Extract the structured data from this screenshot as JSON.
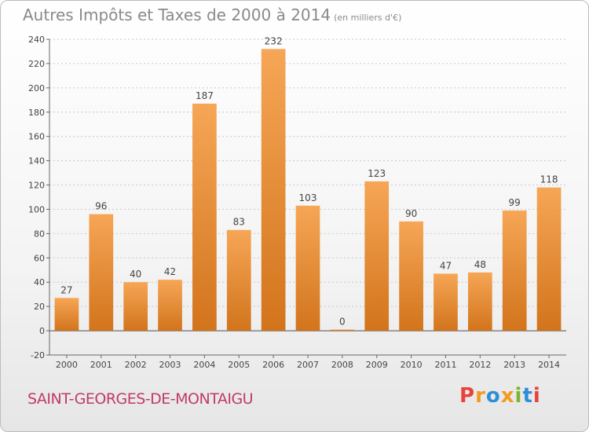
{
  "header": {
    "title": "Autres Impôts et Taxes de 2000 à 2014",
    "unit": "(en milliers d'€)"
  },
  "footer": {
    "commune": "SAINT-GEORGES-DE-MONTAIGU",
    "logo_text": "Proxiti"
  },
  "colors": {
    "bar_light": "#f6a656",
    "bar_dark": "#d2741c",
    "commune": "#c03a6a",
    "logo": [
      "#e8433b",
      "#f39a1e",
      "#2f8fd6",
      "#f39a1e",
      "#7cb52d",
      "#2f8fd6",
      "#e8433b"
    ]
  },
  "chart_data": {
    "type": "bar",
    "title": "Autres Impôts et Taxes de 2000 à 2014",
    "categories": [
      "2000",
      "2001",
      "2002",
      "2003",
      "2004",
      "2005",
      "2006",
      "2007",
      "2008",
      "2009",
      "2010",
      "2011",
      "2012",
      "2013",
      "2014"
    ],
    "values": [
      27,
      96,
      40,
      42,
      187,
      83,
      232,
      103,
      0,
      123,
      90,
      47,
      48,
      99,
      118
    ],
    "ylim": [
      -20,
      240
    ],
    "yticks": [
      -20,
      0,
      20,
      40,
      60,
      80,
      100,
      120,
      140,
      160,
      180,
      200,
      220,
      240
    ],
    "grid": true,
    "legend": "none"
  }
}
